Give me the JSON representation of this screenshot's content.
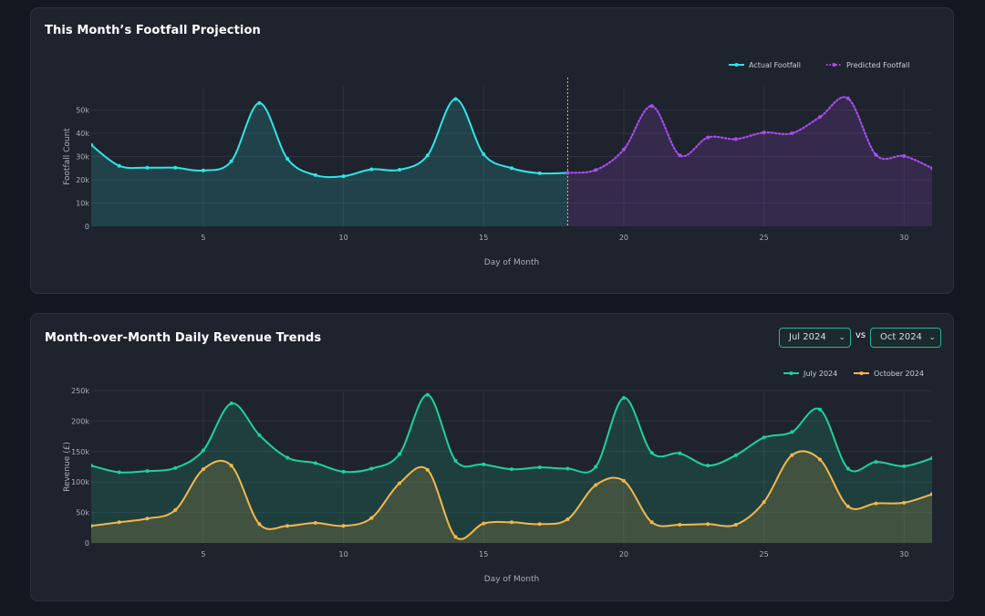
{
  "chart1": {
    "title": "This Month’s Footfall Projection",
    "chart_data": {
      "type": "area",
      "xlabel": "Day of Month",
      "ylabel": "Footfall Count",
      "xlim": [
        1,
        31
      ],
      "ylim": [
        0,
        60000
      ],
      "x_ticks": [
        5,
        10,
        15,
        20,
        25,
        30
      ],
      "y_ticks": [
        0,
        10000,
        20000,
        30000,
        40000,
        50000
      ],
      "y_tick_labels": [
        "0",
        "10k",
        "20k",
        "30k",
        "40k",
        "50k"
      ],
      "grid": true,
      "legend_position": "top-right",
      "divider_x": 18,
      "series": [
        {
          "name": "Actual Footfall",
          "color": "#2ee6e6",
          "style": "solid",
          "x": [
            1,
            2,
            3,
            4,
            5,
            6,
            7,
            8,
            9,
            10,
            11,
            12,
            13,
            14,
            15,
            16,
            17,
            18
          ],
          "values": [
            35000,
            26000,
            25200,
            25200,
            24000,
            28000,
            53000,
            29000,
            22000,
            21500,
            24500,
            24300,
            30500,
            54700,
            31000,
            25000,
            22800,
            23000
          ]
        },
        {
          "name": "Predicted Footfall",
          "color": "#a64df0",
          "style": "dotted",
          "x": [
            18,
            19,
            20,
            21,
            22,
            23,
            24,
            25,
            26,
            27,
            28,
            29,
            30,
            31
          ],
          "values": [
            23000,
            24200,
            33000,
            51700,
            30500,
            38200,
            37500,
            40300,
            40000,
            47000,
            55000,
            30700,
            30200,
            25000
          ]
        }
      ]
    }
  },
  "chart2": {
    "title": "Month-over-Month Daily Revenue Trends",
    "selector_left": "Jul 2024",
    "selector_right": "Oct 2024",
    "vs_label": "vs",
    "chart_data": {
      "type": "area",
      "xlabel": "Day of Month",
      "ylabel": "Revenue (£)",
      "xlim": [
        1,
        31
      ],
      "ylim": [
        0,
        250000
      ],
      "x_ticks": [
        5,
        10,
        15,
        20,
        25,
        30
      ],
      "y_ticks": [
        0,
        50000,
        100000,
        150000,
        200000,
        250000
      ],
      "y_tick_labels": [
        "0",
        "50k",
        "100k",
        "150k",
        "200k",
        "250k"
      ],
      "grid": true,
      "legend_position": "top-right",
      "series": [
        {
          "name": "July 2024",
          "color": "#1fd19a",
          "x": [
            1,
            2,
            3,
            4,
            5,
            6,
            7,
            8,
            9,
            10,
            11,
            12,
            13,
            14,
            15,
            16,
            17,
            18,
            19,
            20,
            21,
            22,
            23,
            24,
            25,
            26,
            27,
            28,
            29,
            30,
            31
          ],
          "values": [
            127000,
            116000,
            118000,
            123000,
            152000,
            229000,
            177000,
            140000,
            131000,
            117000,
            122000,
            146000,
            243000,
            135000,
            129000,
            121000,
            124000,
            122000,
            125000,
            238000,
            148000,
            147000,
            127000,
            144000,
            173000,
            182000,
            219000,
            122000,
            133000,
            126000,
            139000
          ]
        },
        {
          "name": "October 2024",
          "color": "#f2b84b",
          "x": [
            1,
            2,
            3,
            4,
            5,
            6,
            7,
            8,
            9,
            10,
            11,
            12,
            13,
            14,
            15,
            16,
            17,
            18,
            19,
            20,
            21,
            22,
            23,
            24,
            25,
            26,
            27,
            28,
            29,
            30,
            31
          ],
          "values": [
            28000,
            34000,
            40000,
            54000,
            121000,
            127000,
            31000,
            28000,
            33000,
            28000,
            41000,
            98000,
            120000,
            10000,
            32000,
            34000,
            31000,
            39000,
            95000,
            102000,
            34000,
            30000,
            31000,
            30000,
            67000,
            144000,
            137000,
            60000,
            65000,
            66000,
            80000
          ]
        }
      ]
    }
  }
}
